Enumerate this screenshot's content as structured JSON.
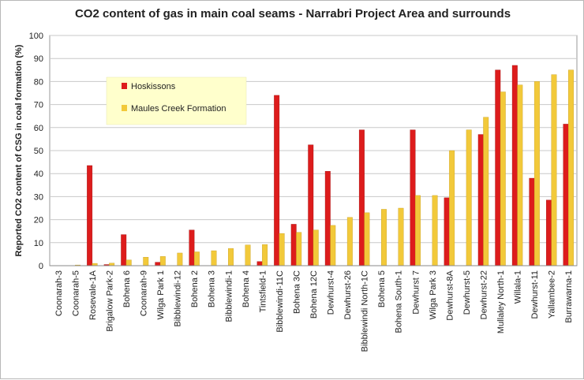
{
  "chart_data": {
    "type": "bar",
    "title": "CO2 content of gas in main coal seams - Narrabri Project Area and surrounds",
    "ylabel": "Reported CO2 content of CSG in coal formation (%)",
    "xlabel": "",
    "ylim": [
      0,
      100
    ],
    "yticks": [
      0,
      10,
      20,
      30,
      40,
      50,
      60,
      70,
      80,
      90,
      100
    ],
    "grid": true,
    "legend_position": "top-left",
    "categories": [
      "Coonarah-3",
      "Coonarah-5",
      "Rosevale-1A",
      "Brigalow Park-2",
      "Bohena 6",
      "Coonarah-9",
      "Wilga Park 1",
      "Bibblewindi-12",
      "Bohena 2",
      "Bohena 3",
      "Bibblewindi-1",
      "Bohena 4",
      "Tintsfield-1",
      "Bibblewindi-11C",
      "Bohena 3C",
      "Bohena 12C",
      "Dewhurst-4",
      "Dewhurst-26",
      "Bibblewindi North-1C",
      "Bohena 5",
      "Bohena South-1",
      "Dewhurst 7",
      "Wilga Park 3",
      "Dewhurst-8A",
      "Dewhurst-5",
      "Dewhurst-22",
      "Mullaley North-1",
      "Willala-1",
      "Dewhurst-11",
      "Yallambee-2",
      "Burrawarna-1"
    ],
    "series": [
      {
        "name": "Hoskissons",
        "color": "#dd1c1c",
        "values": [
          0,
          0,
          43.5,
          0.5,
          13.5,
          0,
          1.5,
          0,
          15.5,
          0,
          0,
          0,
          1.8,
          74,
          18,
          52.5,
          41,
          0,
          59,
          0,
          0,
          59,
          0,
          29.5,
          0,
          57,
          85,
          87,
          38,
          28.5,
          61.5
        ]
      },
      {
        "name": "Maules Creek Formation",
        "color": "#f2c93a",
        "values": [
          0.1,
          0.3,
          1,
          1.1,
          2.5,
          3.7,
          4,
          5.5,
          6,
          6.5,
          7.5,
          9,
          9.2,
          14,
          14.5,
          15.5,
          17.5,
          21,
          23,
          24.5,
          25,
          30.5,
          30.5,
          50,
          59,
          64.5,
          75.5,
          78.5,
          80,
          83,
          85
        ]
      }
    ]
  }
}
